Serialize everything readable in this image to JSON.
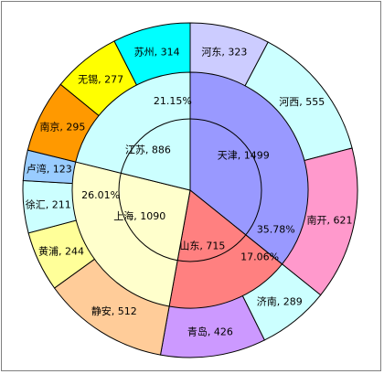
{
  "chart_data": {
    "type": "pie",
    "subtype": "sunburst",
    "title": "",
    "inner_ring": {
      "series": [
        {
          "name": "天津",
          "value": 1499,
          "color": "#9999ff"
        },
        {
          "name": "山东",
          "value": 715,
          "color": "#ff8080"
        },
        {
          "name": "上海",
          "value": 1090,
          "color": "#ffffcc"
        },
        {
          "name": "江苏",
          "value": 886,
          "color": "#ccffff"
        }
      ],
      "percent_labels": [
        "35.78%",
        "17.06%",
        "26.01%",
        "21.15%"
      ]
    },
    "outer_ring": {
      "series": [
        {
          "name": "河东",
          "value": 323,
          "parent": "天津",
          "color": "#ccccff"
        },
        {
          "name": "河西",
          "value": 555,
          "parent": "天津",
          "color": "#ccffff"
        },
        {
          "name": "南开",
          "value": 621,
          "parent": "天津",
          "color": "#ff99cc"
        },
        {
          "name": "济南",
          "value": 289,
          "parent": "山东",
          "color": "#ccffff"
        },
        {
          "name": "青岛",
          "value": 426,
          "parent": "山东",
          "color": "#cc99ff"
        },
        {
          "name": "静安",
          "value": 512,
          "parent": "上海",
          "color": "#ffcc99"
        },
        {
          "name": "黄浦",
          "value": 244,
          "parent": "上海",
          "color": "#ffff99"
        },
        {
          "name": "徐汇",
          "value": 211,
          "parent": "上海",
          "color": "#ccffff"
        },
        {
          "name": "卢湾",
          "value": 123,
          "parent": "上海",
          "color": "#99ccff"
        },
        {
          "name": "南京",
          "value": 295,
          "parent": "江苏",
          "color": "#ff9900"
        },
        {
          "name": "无锡",
          "value": 277,
          "parent": "江苏",
          "color": "#ffff00"
        },
        {
          "name": "苏州",
          "value": 314,
          "parent": "江苏",
          "color": "#00ffff"
        }
      ]
    },
    "label_separator": ", ",
    "legend": "none",
    "grid": false
  }
}
